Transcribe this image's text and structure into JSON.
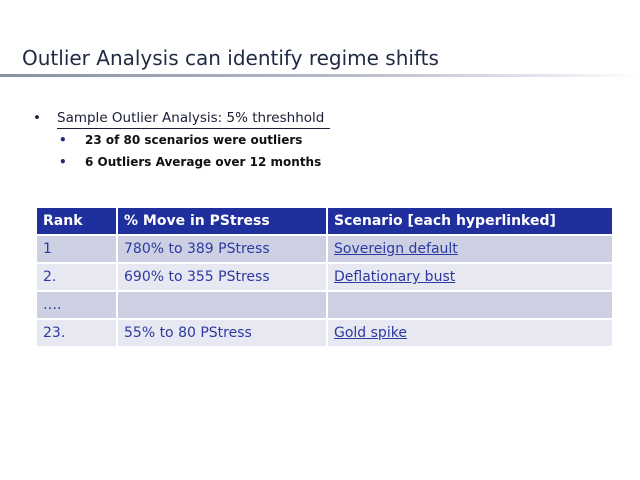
{
  "slide": {
    "title": "Outlier Analysis can identify regime shifts"
  },
  "bullets": {
    "main_marker": "•",
    "main": "Sample Outlier Analysis: 5% threshhold",
    "sub_marker": "•",
    "sub": [
      "23 of 80 scenarios were outliers",
      "6 Outliers Average over 12 months"
    ]
  },
  "table": {
    "headers": [
      "Rank",
      "% Move in PStress",
      "Scenario [each hyperlinked]"
    ],
    "rows": [
      {
        "rank": "1",
        "move": "780% to 389 PStress",
        "scenario": "Sovereign default"
      },
      {
        "rank": "2.",
        "move": "690% to 355 PStress",
        "scenario": "Deflationary bust"
      },
      {
        "rank": "….",
        "move": "",
        "scenario": ""
      },
      {
        "rank": "23.",
        "move": "55% to 80 PStress",
        "scenario": "Gold spike"
      }
    ]
  },
  "colors": {
    "header_bg": "#1f2f9e",
    "row_dark": "#cdd0e2",
    "row_light": "#e7e8f1",
    "cell_text": "#2b3aa0",
    "title_text": "#1f2a44"
  }
}
